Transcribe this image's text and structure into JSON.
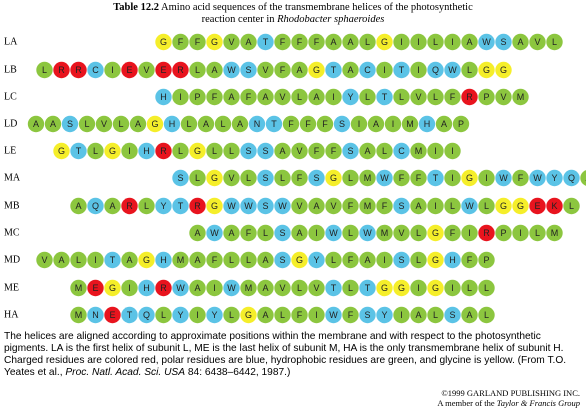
{
  "title": {
    "label": "Table 12.2",
    "line1": "Amino acid sequences of the transmembrane helices of the photosynthetic",
    "line2": "reaction center in",
    "species": "Rhodobacter sphaeroides"
  },
  "rows": [
    {
      "label": "LA",
      "residues": "GFFGVATFFFAALGIILIAWSAVL"
    },
    {
      "label": "LB",
      "residues": "LRRCIEVERLAWSVFAGTACITIQWLGG"
    },
    {
      "label": "LC",
      "residues": "HIPFAFAVLAIYLTLVLFRPVM"
    },
    {
      "label": "LD",
      "residues": "AASLVLAGHLALANTFFFSIAIMHAP"
    },
    {
      "label": "LE",
      "residues": "GTLGIHRLGLLSSAVFFSALCMII"
    },
    {
      "label": "MA",
      "residues": "SLGVLSLFSGLMWFFTIGIWFWYQA"
    },
    {
      "label": "MB",
      "residues": "AQARLYTRGWWSWVAVFMFSAILWLGGEKL"
    },
    {
      "label": "MC",
      "residues": "AWAFLSAIWLWMVLGFIRPILM"
    },
    {
      "label": "MD",
      "residues": "VALITAGHMAFLLASGYLFAISLGHFP"
    },
    {
      "label": "ME",
      "residues": "MEGIHRWAIWMAVLVTLTGGIGILL"
    },
    {
      "label": "HA",
      "residues": "MNETQLYIYLGALFIWFSYIALSAL"
    }
  ],
  "caption": {
    "text1": "The helices are aligned according to approximate positions within the membrane and with respect to the photosynthetic pigments. LA is the first helix of subunit L, ME is the last helix of subunit M, HA is the only transmembrane helix of subunit H. Charged residues are colored red, polar residues are blue, hydrophobic residues are green, and glycine is yellow. (From T.O. Yeates et al.,",
    "journal": "Proc. Natl. Acad. Sci. USA",
    "text2": "84: 6438–6442, 1987.)"
  },
  "copyright": "©1999 GARLAND PUBLISHING INC.",
  "member": {
    "text": "A member of the",
    "group": "Taylor & Francis Group"
  }
}
